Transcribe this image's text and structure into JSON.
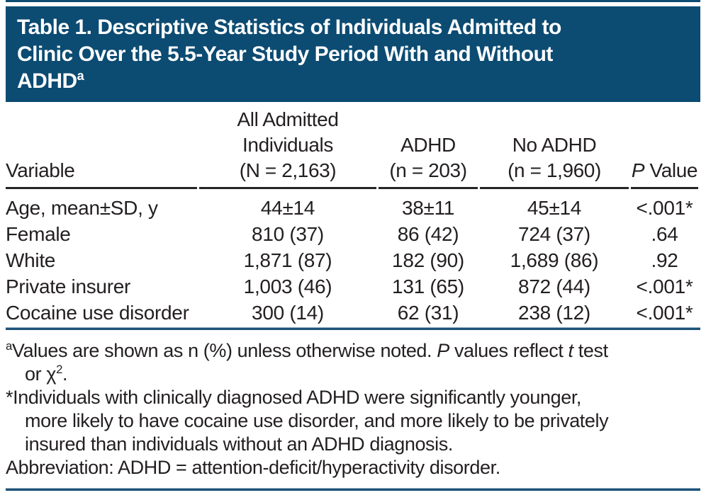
{
  "colors": {
    "header_background": "#0c4b72",
    "title_text": "#ffffff",
    "body_text": "#231f20",
    "header_rule_black": "#272425",
    "separator_rule_blue": "#1e5278",
    "separator_rule_highlight": "#8fadc3"
  },
  "title": {
    "full_text": "Table 1. Descriptive Statistics of Individuals Admitted to Clinic Over the 5.5-Year Study Period With and Without ADHDa",
    "lines": [
      [
        {
          "t": "Table 1. Descriptive Statistics of Individuals Admitted to"
        }
      ],
      [
        {
          "t": "Clinic Over the 5.5-Year Study Period With and Without"
        }
      ],
      [
        {
          "t": "ADHD"
        },
        {
          "t": "a",
          "s": "sup"
        }
      ]
    ]
  },
  "table": {
    "columns": [
      {
        "id": "variable",
        "align": "left",
        "lines": [
          [
            {
              "t": "Variable"
            }
          ]
        ]
      },
      {
        "id": "all_admitted",
        "align": "center",
        "lines": [
          [
            {
              "t": "All Admitted"
            }
          ],
          [
            {
              "t": "Individuals"
            }
          ],
          [
            {
              "t": "(N = 2,163)"
            }
          ]
        ]
      },
      {
        "id": "adhd",
        "align": "center",
        "lines": [
          [
            {
              "t": "ADHD"
            }
          ],
          [
            {
              "t": "(n = 203)"
            }
          ]
        ]
      },
      {
        "id": "no_adhd",
        "align": "center",
        "lines": [
          [
            {
              "t": "No ADHD"
            }
          ],
          [
            {
              "t": "(n = 1,960)"
            }
          ]
        ]
      },
      {
        "id": "p_value",
        "align": "center",
        "lines": [
          [
            {
              "t": "P",
              "s": "i"
            },
            {
              "t": " Value"
            }
          ]
        ]
      }
    ],
    "rows": [
      {
        "variable": "Age, mean±SD, y",
        "all_admitted": "44±14",
        "adhd": "38±11",
        "no_adhd": "45±14",
        "p_value": "<.001*"
      },
      {
        "variable": "Female",
        "all_admitted": "810 (37)",
        "adhd": "86 (42)",
        "no_adhd": "724 (37)",
        "p_value": ".64"
      },
      {
        "variable": "White",
        "all_admitted": "1,871 (87)",
        "adhd": "182 (90)",
        "no_adhd": "1,689 (86)",
        "p_value": ".92"
      },
      {
        "variable": "Private insurer",
        "all_admitted": "1,003 (46)",
        "adhd": "131 (65)",
        "no_adhd": "872 (44)",
        "p_value": "<.001*"
      },
      {
        "variable": "Cocaine use disorder",
        "all_admitted": "300 (14)",
        "adhd": "62 (31)",
        "no_adhd": "238 (12)",
        "p_value": "<.001*"
      }
    ]
  },
  "footnotes": {
    "note_a": {
      "full_text": "aValues are shown as n (%) unless otherwise noted. P values reflect t test or χ2.",
      "lines": [
        [
          {
            "t": "a",
            "s": "sup"
          },
          {
            "t": "Values are shown as n (%) unless otherwise noted. "
          },
          {
            "t": "P",
            "s": "i"
          },
          {
            "t": " values reflect "
          },
          {
            "t": "t",
            "s": "i"
          },
          {
            "t": " test"
          }
        ],
        [
          {
            "t": "or χ"
          },
          {
            "t": "2",
            "s": "sup"
          },
          {
            "t": "."
          }
        ]
      ]
    },
    "note_star": {
      "full_text": "*Individuals with clinically diagnosed ADHD were significantly younger, more likely to have cocaine use disorder, and more likely to be privately insured than individuals without an ADHD diagnosis.",
      "lines": [
        [
          {
            "t": "*Individuals with clinically diagnosed ADHD were significantly younger,"
          }
        ],
        [
          {
            "t": "more likely to have cocaine use disorder, and more likely to be privately"
          }
        ],
        [
          {
            "t": "insured than individuals without an ADHD diagnosis."
          }
        ]
      ]
    },
    "abbreviation": {
      "full_text": "Abbreviation: ADHD = attention-deficit/hyperactivity disorder.",
      "lines": [
        [
          {
            "t": "Abbreviation: ADHD = attention-deficit/hyperactivity disorder."
          }
        ]
      ]
    }
  }
}
